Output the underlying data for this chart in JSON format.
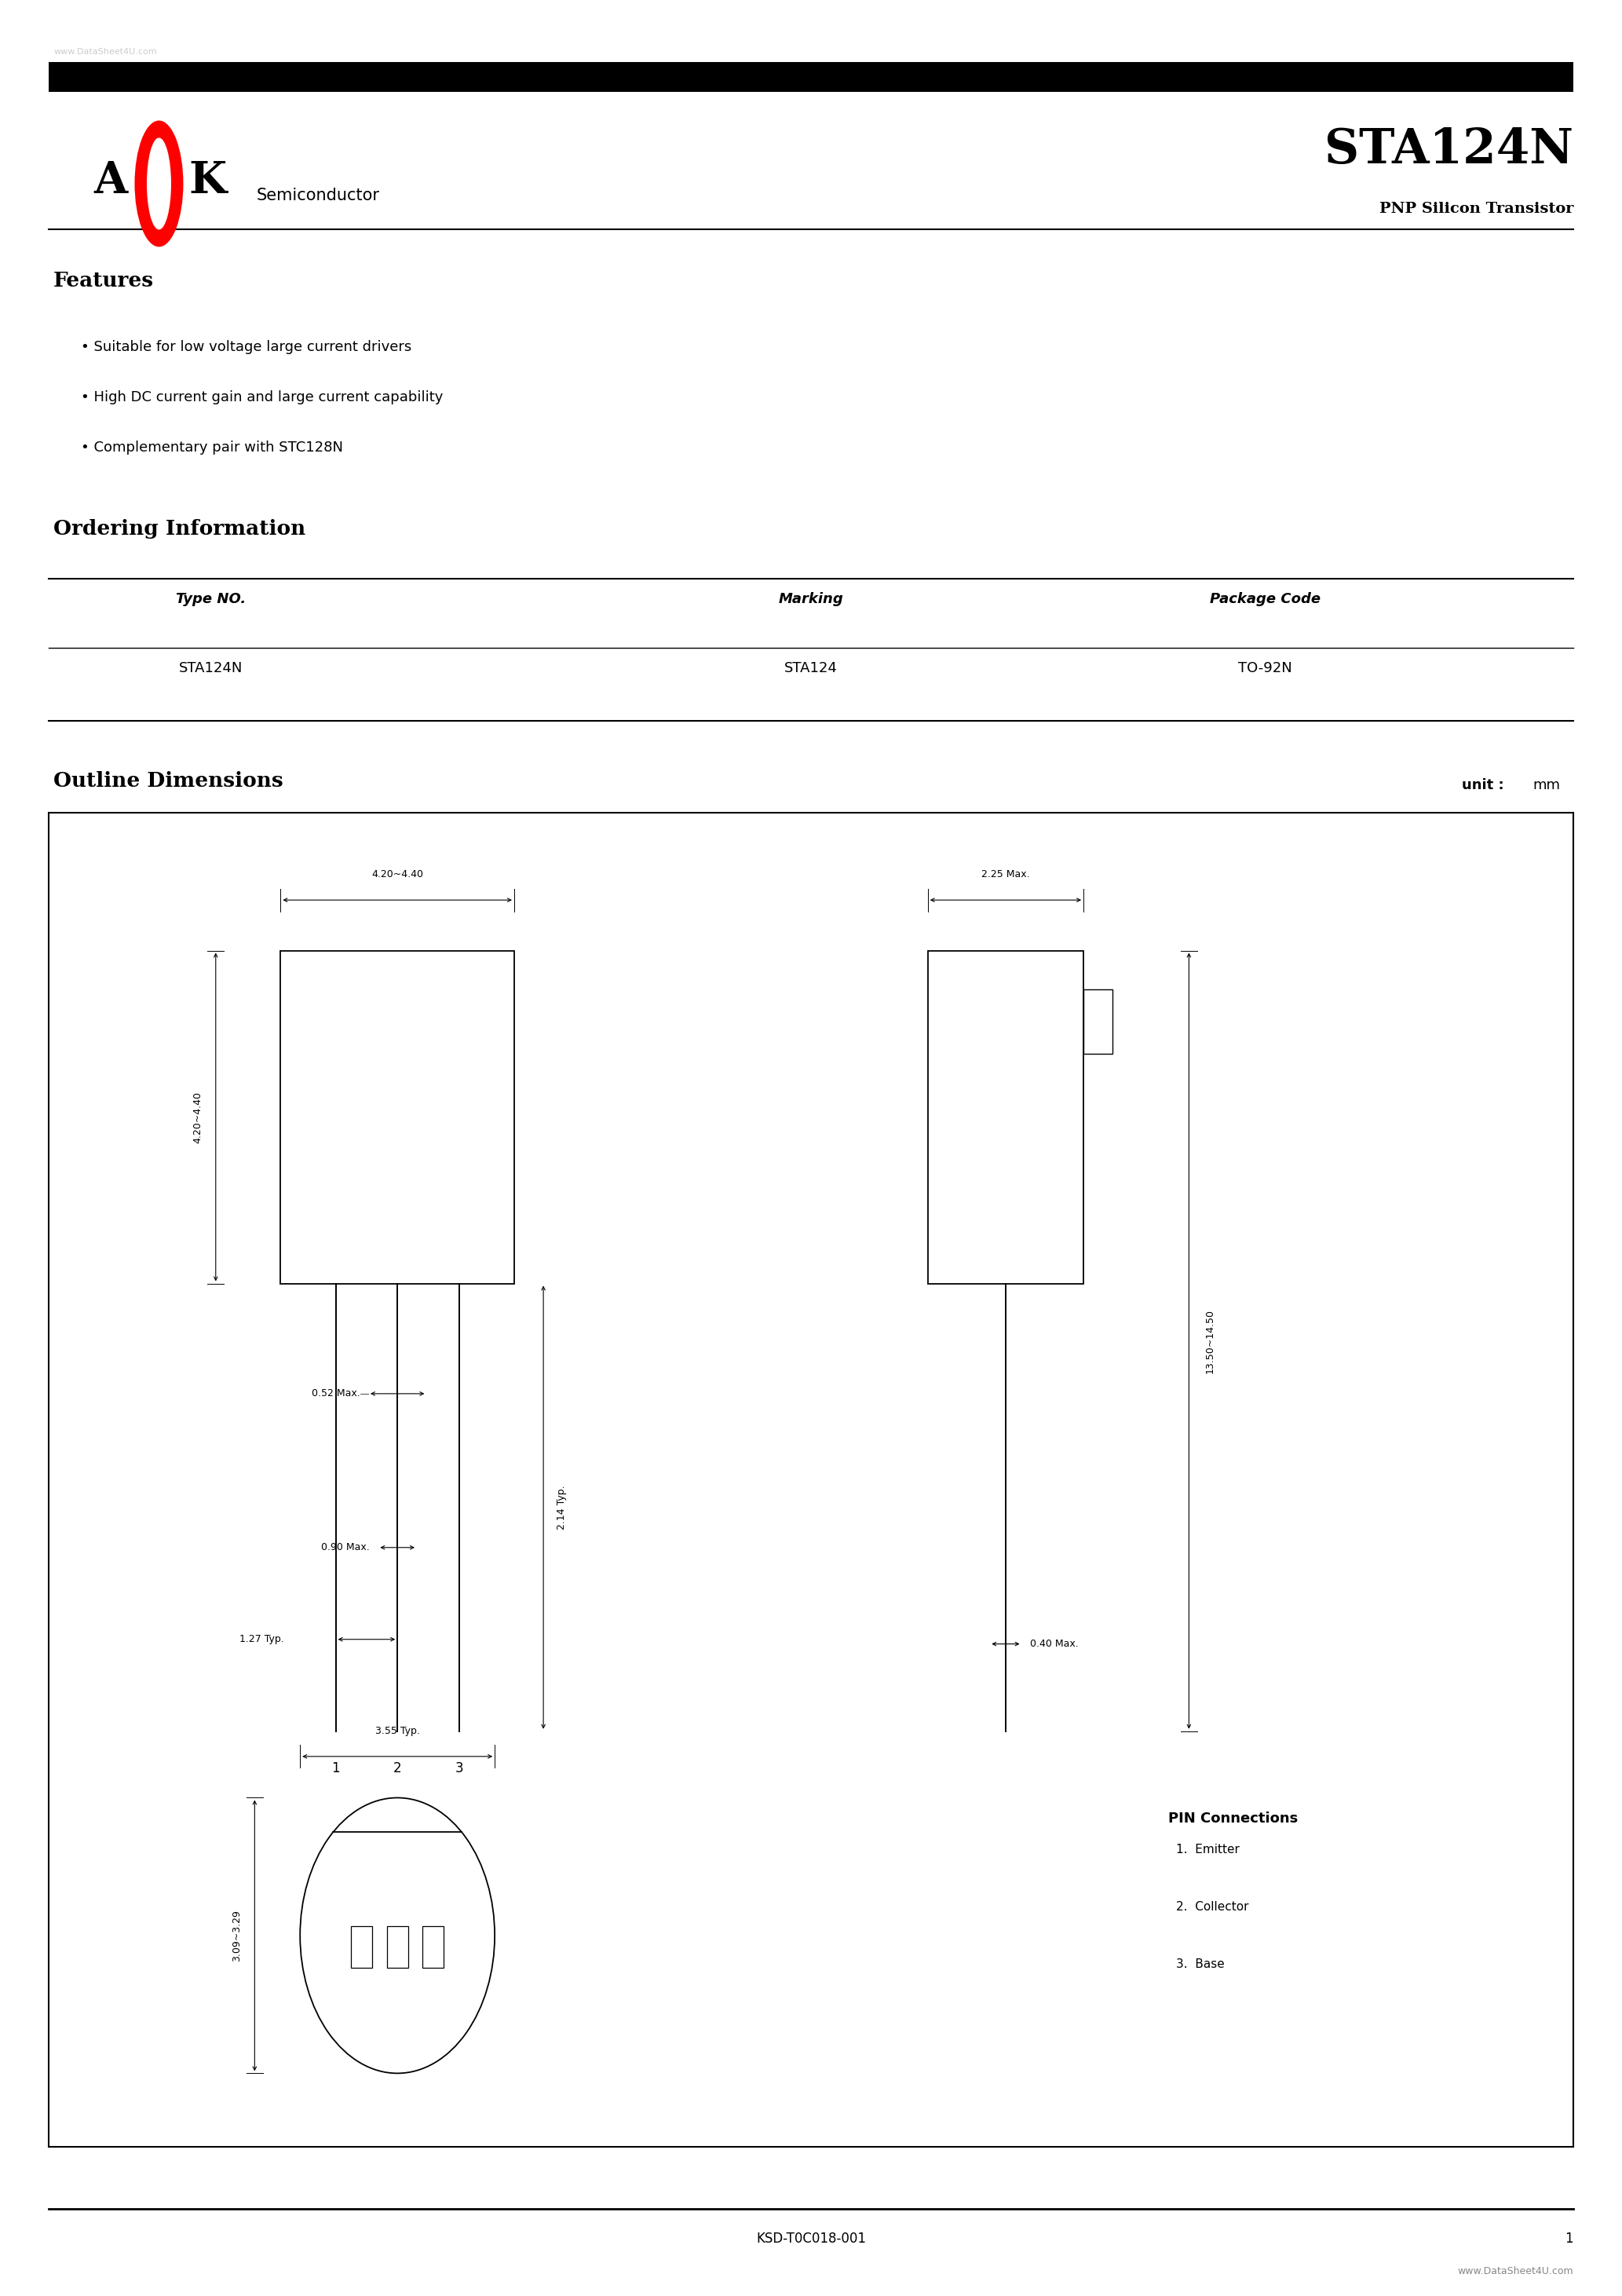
{
  "page_width": 20.66,
  "page_height": 29.24,
  "bg_color": "#ffffff",
  "watermark_text": "www.DataSheet4U.com",
  "watermark_color": "#cccccc",
  "header_bar_color": "#000000",
  "company_subtitle": "Semiconductor",
  "part_number": "STA124N",
  "part_subtitle": "PNP Silicon Transistor",
  "features_title": "Features",
  "features": [
    "Suitable for low voltage large current drivers",
    "High DC current gain and large current capability",
    "Complementary pair with STC128N"
  ],
  "ordering_title": "Ordering Information",
  "ordering_headers": [
    "Type NO.",
    "Marking",
    "Package Code"
  ],
  "ordering_data": [
    [
      "STA124N",
      "STA124",
      "TO-92N"
    ]
  ],
  "outline_title": "Outline Dimensions",
  "outline_unit": "unit :  mm",
  "pin_connections_title": "PIN Connections",
  "pin_connections": [
    "1.  Emitter",
    "2.  Collector",
    "3.  Base"
  ],
  "footer_left": "KSD-T0C018-001",
  "footer_right": "www.DataSheet4U.com",
  "footer_page": "1"
}
